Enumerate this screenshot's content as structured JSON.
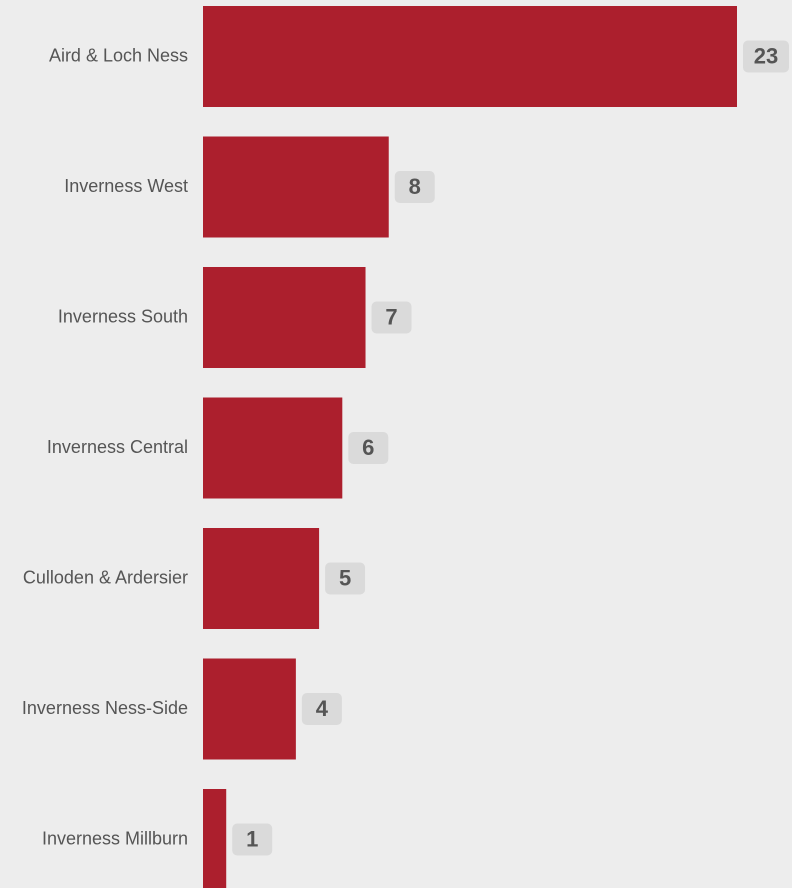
{
  "chart_data": {
    "type": "bar",
    "orientation": "horizontal",
    "categories": [
      "Aird & Loch Ness",
      "Inverness West",
      "Inverness South",
      "Inverness Central",
      "Culloden & Ardersier",
      "Inverness Ness-Side",
      "Inverness Millburn"
    ],
    "values": [
      23,
      8,
      7,
      6,
      5,
      4,
      1
    ],
    "value_labels": [
      "23",
      "8",
      "7",
      "6",
      "5",
      "4",
      "1"
    ],
    "title": "",
    "xlabel": "",
    "ylabel": "",
    "xlim": [
      0,
      23
    ],
    "grid": false,
    "legend": "none",
    "colors": {
      "bar": "#ac1f2d",
      "label_box": "#dadada",
      "label_text": "#555555",
      "category_text": "#555555",
      "background": "#ededed"
    }
  }
}
